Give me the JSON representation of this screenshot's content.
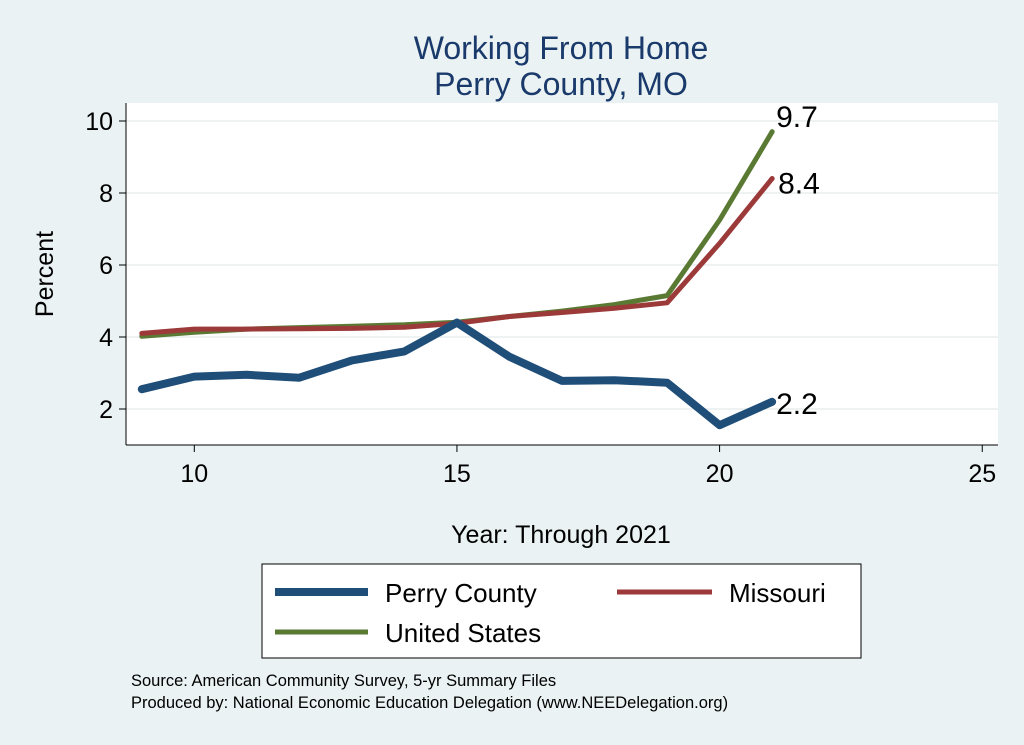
{
  "chart_data": {
    "type": "line",
    "title": [
      "Working From Home",
      "Perry County, MO"
    ],
    "xlabel": "Year: Through 2021",
    "ylabel": "Percent",
    "xlim": [
      8.7,
      25.3
    ],
    "ylim": [
      1.0,
      10.5
    ],
    "xticks": [
      10,
      15,
      20,
      25
    ],
    "yticks": [
      2,
      4,
      6,
      8,
      10
    ],
    "grid": true,
    "legend_position": "bottom",
    "x": [
      9,
      10,
      11,
      12,
      13,
      14,
      15,
      16,
      17,
      18,
      19,
      20,
      21
    ],
    "series": [
      {
        "name": "Perry County",
        "color": "#1f4e79",
        "width": 8,
        "values": [
          2.55,
          2.9,
          2.95,
          2.87,
          3.35,
          3.6,
          4.4,
          3.45,
          2.78,
          2.8,
          2.73,
          1.55,
          2.2
        ],
        "end_label": "2.2"
      },
      {
        "name": "Missouri",
        "color": "#9c3a3a",
        "width": 5,
        "values": [
          4.1,
          4.22,
          4.22,
          4.23,
          4.24,
          4.27,
          4.38,
          4.57,
          4.68,
          4.8,
          4.95,
          6.6,
          8.4
        ],
        "end_label": "8.4"
      },
      {
        "name": "United States",
        "color": "#5a7a34",
        "width": 5,
        "values": [
          4.02,
          4.13,
          4.22,
          4.26,
          4.3,
          4.34,
          4.41,
          4.57,
          4.72,
          4.9,
          5.15,
          7.25,
          9.7
        ],
        "end_label": "9.7"
      }
    ],
    "source_lines": [
      "Source: American Community Survey, 5-yr Summary Files",
      "Produced by: National Economic Education Delegation (www.NEEDelegation.org)"
    ]
  }
}
